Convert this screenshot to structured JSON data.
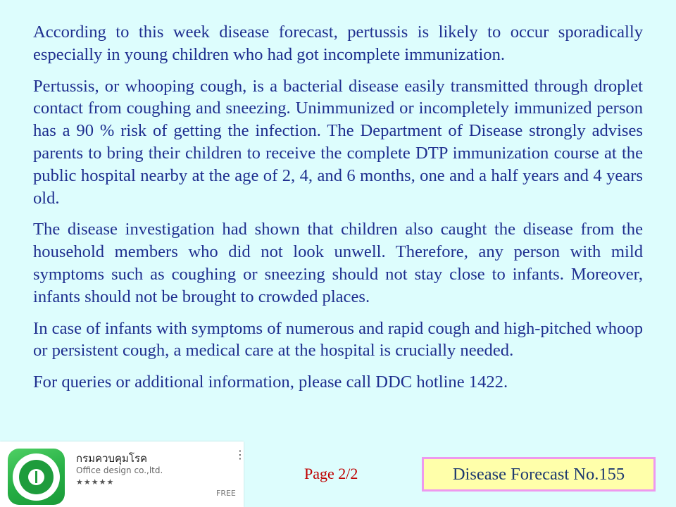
{
  "paragraphs": [
    "According to this week disease forecast, pertussis is likely to occur sporadically especially in young children who had got incomplete immunization.",
    "Pertussis, or whooping cough, is a bacterial disease easily transmitted through droplet contact from coughing and sneezing. Unimmunized or incompletely immunized person has a 90 % risk of getting the infection. The Department of Disease strongly advises parents to bring their children to receive the complete DTP immunization course at the public hospital nearby at  the age of 2, 4, and 6 months, one and a half years and 4 years old.",
    "The disease investigation had shown that children also caught the disease from the household members who did not look unwell.  Therefore, any person with mild symptoms such as coughing or sneezing should not stay close to infants. Moreover, infants should not be brought to crowded places.",
    "In case of infants with symptoms of numerous and rapid cough and high-pitched whoop or persistent cough, a medical care at the hospital is crucially needed.",
    "For queries or additional information, please call DDC hotline 1422."
  ],
  "app_card": {
    "name": "กรมควบคุมโรค",
    "developer": "Office design co.,ltd.",
    "rating": "★★★★★",
    "rating_value": 5,
    "menu_icon": "more-vertical-icon",
    "menu_glyph": "⋮",
    "price": "FREE",
    "icon": "ddc-seal-icon",
    "icon_color": "#25ae44"
  },
  "footer": {
    "page_label": "Page 2/2",
    "forecast_label": "Disease Forecast No.155"
  },
  "colors": {
    "background": "#ddfdfd",
    "body_text": "#1f2f8f",
    "page_label": "#c00000",
    "forecast_box_fill": "#ffffaa",
    "forecast_box_border": "#ee99ee"
  }
}
